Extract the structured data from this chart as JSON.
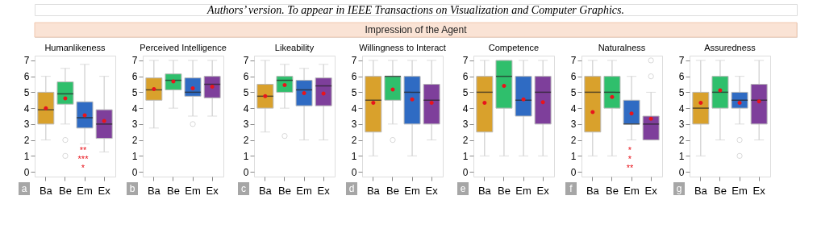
{
  "chart_data": [
    {
      "type": "box",
      "title": "Humanlikeness",
      "categories": [
        "Ba",
        "Be",
        "Em",
        "Ex"
      ],
      "colors": [
        "#d9a12c",
        "#2fbf6c",
        "#2f6bc3",
        "#7e3f9b"
      ],
      "ylim": [
        -0.3,
        7.3
      ],
      "yticks": [
        0,
        1,
        2,
        3,
        4,
        5,
        6,
        7
      ],
      "grid": false,
      "boxes": [
        {
          "low": 2,
          "q1": 3,
          "median": 3.9,
          "q3": 5,
          "high": 6,
          "mean": 4.0
        },
        {
          "low": 3,
          "q1": 4.25,
          "median": 4.9,
          "q3": 5.65,
          "high": 6.5,
          "mean": 4.62,
          "outliers": [
            2,
            1
          ]
        },
        {
          "low": 1.75,
          "q1": 2.75,
          "median": 3.4,
          "q3": 4.4,
          "high": 6.75,
          "mean": 3.55
        },
        {
          "low": 1.25,
          "q1": 2.1,
          "median": 3,
          "q3": 3.9,
          "high": 6,
          "mean": 3.2
        }
      ],
      "annotations": [
        "Authors’ version. To appear in IEEE Transactions on Visualization and Computer Graphics.",
        "Impression of the Agent",
        "a",
        "**",
        "***",
        "*"
      ]
    },
    {
      "type": "box",
      "title": "Perceived Intelligence",
      "categories": [
        "Ba",
        "Be",
        "Em",
        "Ex"
      ],
      "colors": [
        "#d9a12c",
        "#2fbf6c",
        "#2f6bc3",
        "#7e3f9b"
      ],
      "ylim": [
        -0.3,
        7.3
      ],
      "yticks": [
        0,
        1,
        2,
        3,
        4,
        5,
        6,
        7
      ],
      "grid": false,
      "boxes": [
        {
          "low": 2.75,
          "q1": 4.5,
          "median": 5.15,
          "q3": 5.9,
          "high": 7,
          "mean": 5.2
        },
        {
          "low": 4,
          "q1": 5.15,
          "median": 5.75,
          "q3": 6.15,
          "high": 7,
          "mean": 5.68
        },
        {
          "low": 3.5,
          "q1": 4.75,
          "median": 5,
          "q3": 5.9,
          "high": 7,
          "mean": 5.25,
          "outliers": [
            3
          ]
        },
        {
          "low": 3.5,
          "q1": 4.65,
          "median": 5.5,
          "q3": 6,
          "high": 7,
          "mean": 5.35
        }
      ],
      "annotations": [
        "b"
      ]
    },
    {
      "type": "box",
      "title": "Likeability",
      "categories": [
        "Ba",
        "Be",
        "Em",
        "Ex"
      ],
      "colors": [
        "#d9a12c",
        "#2fbf6c",
        "#2f6bc3",
        "#7e3f9b"
      ],
      "ylim": [
        -0.3,
        7.3
      ],
      "yticks": [
        0,
        1,
        2,
        3,
        4,
        5,
        6,
        7
      ],
      "grid": false,
      "boxes": [
        {
          "low": 2.5,
          "q1": 4,
          "median": 4.75,
          "q3": 5.5,
          "high": 7,
          "mean": 4.75
        },
        {
          "low": 4,
          "q1": 5,
          "median": 5.75,
          "q3": 6,
          "high": 6.75,
          "mean": 5.45,
          "outliers": [
            2.25
          ]
        },
        {
          "low": 2,
          "q1": 4.15,
          "median": 5.15,
          "q3": 5.75,
          "high": 6.5,
          "mean": 4.95
        },
        {
          "low": 2,
          "q1": 4.15,
          "median": 5.4,
          "q3": 5.9,
          "high": 6.75,
          "mean": 4.92
        }
      ],
      "annotations": [
        "c"
      ]
    },
    {
      "type": "box",
      "title": "Willingness to Interact",
      "categories": [
        "Ba",
        "Be",
        "Em",
        "Ex"
      ],
      "colors": [
        "#d9a12c",
        "#2fbf6c",
        "#2f6bc3",
        "#7e3f9b"
      ],
      "ylim": [
        -0.3,
        7.3
      ],
      "yticks": [
        0,
        1,
        2,
        3,
        4,
        5,
        6,
        7
      ],
      "grid": false,
      "boxes": [
        {
          "low": 1,
          "q1": 2.5,
          "median": 4.5,
          "q3": 6,
          "high": 7,
          "mean": 4.33
        },
        {
          "low": 3,
          "q1": 4.5,
          "median": 6,
          "q3": 6,
          "high": 7,
          "mean": 5.17,
          "outliers": [
            2
          ]
        },
        {
          "low": 1,
          "q1": 3,
          "median": 5,
          "q3": 6,
          "high": 7,
          "mean": 4.55
        },
        {
          "low": 2,
          "q1": 3,
          "median": 4.5,
          "q3": 5.5,
          "high": 7,
          "mean": 4.33
        }
      ],
      "annotations": [
        "d"
      ]
    },
    {
      "type": "box",
      "title": "Competence",
      "categories": [
        "Ba",
        "Be",
        "Em",
        "Ex"
      ],
      "colors": [
        "#d9a12c",
        "#2fbf6c",
        "#2f6bc3",
        "#7e3f9b"
      ],
      "ylim": [
        -0.3,
        7.3
      ],
      "yticks": [
        0,
        1,
        2,
        3,
        4,
        5,
        6,
        7
      ],
      "grid": false,
      "boxes": [
        {
          "low": 1,
          "q1": 2.5,
          "median": 5,
          "q3": 6,
          "high": 7,
          "mean": 4.33
        },
        {
          "low": 1,
          "q1": 4,
          "median": 6,
          "q3": 7,
          "high": 7,
          "mean": 5.4
        },
        {
          "low": 1,
          "q1": 3.5,
          "median": 4.5,
          "q3": 6,
          "high": 7,
          "mean": 4.55
        },
        {
          "low": 1,
          "q1": 3,
          "median": 5,
          "q3": 6,
          "high": 7,
          "mean": 4.38
        }
      ],
      "annotations": [
        "e"
      ]
    },
    {
      "type": "box",
      "title": "Naturalness",
      "categories": [
        "Ba",
        "Be",
        "Em",
        "Ex"
      ],
      "colors": [
        "#d9a12c",
        "#2fbf6c",
        "#2f6bc3",
        "#7e3f9b"
      ],
      "ylim": [
        -0.3,
        7.3
      ],
      "yticks": [
        0,
        1,
        2,
        3,
        4,
        5,
        6,
        7
      ],
      "grid": false,
      "boxes": [
        {
          "low": 1,
          "q1": 2.5,
          "median": 5,
          "q3": 6,
          "high": 7,
          "mean": 3.75
        },
        {
          "low": 1,
          "q1": 4,
          "median": 5,
          "q3": 6,
          "high": 7,
          "mean": 4.7
        },
        {
          "low": 2,
          "q1": 3,
          "median": 3,
          "q3": 4.5,
          "high": 6,
          "mean": 3.67
        },
        {
          "low": 2,
          "q1": 2,
          "median": 3,
          "q3": 3.5,
          "high": 5,
          "mean": 3.33,
          "outliers": [
            6,
            7
          ]
        }
      ],
      "annotations": [
        "f",
        "*",
        "*",
        "**"
      ]
    },
    {
      "type": "box",
      "title": "Assuredness",
      "categories": [
        "Ba",
        "Be",
        "Em",
        "Ex"
      ],
      "colors": [
        "#d9a12c",
        "#2fbf6c",
        "#2f6bc3",
        "#7e3f9b"
      ],
      "ylim": [
        -0.3,
        7.3
      ],
      "yticks": [
        0,
        1,
        2,
        3,
        4,
        5,
        6,
        7
      ],
      "grid": false,
      "boxes": [
        {
          "low": 1,
          "q1": 3,
          "median": 4,
          "q3": 5,
          "high": 7,
          "mean": 4.33
        },
        {
          "low": 2,
          "q1": 4,
          "median": 5,
          "q3": 6,
          "high": 7,
          "mean": 5.12
        },
        {
          "low": 3,
          "q1": 4,
          "median": 4.5,
          "q3": 5,
          "high": 6,
          "mean": 4.33,
          "outliers": [
            2,
            1
          ]
        },
        {
          "low": 2,
          "q1": 3,
          "median": 4.5,
          "q3": 5.5,
          "high": 7,
          "mean": 4.42
        }
      ],
      "annotations": [
        "g"
      ]
    }
  ]
}
